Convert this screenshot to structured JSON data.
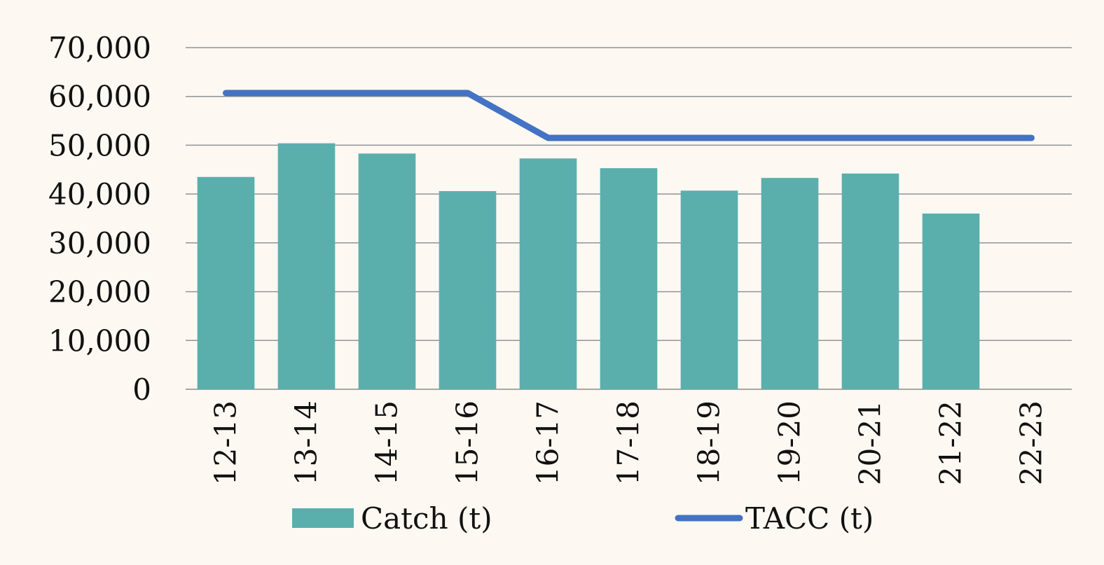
{
  "chart_data": {
    "type": "bar",
    "categories": [
      "12-13",
      "13-14",
      "14-15",
      "15-16",
      "16-17",
      "17-18",
      "18-19",
      "19-20",
      "20-21",
      "21-22",
      "22-23"
    ],
    "series": [
      {
        "name": "Catch (t)",
        "type": "bar",
        "color": "#5aafad",
        "values": [
          43500,
          50400,
          48300,
          40600,
          47300,
          45300,
          40700,
          43300,
          44200,
          36000,
          null
        ]
      },
      {
        "name": "TACC (t)",
        "type": "line",
        "color": "#4472c4",
        "values": [
          60700,
          60700,
          60700,
          60700,
          51500,
          51500,
          51500,
          51500,
          51500,
          51500,
          51500
        ]
      }
    ],
    "title": "",
    "xlabel": "",
    "ylabel": "",
    "ylim": [
      0,
      70000
    ],
    "yticks": [
      0,
      10000,
      20000,
      30000,
      40000,
      50000,
      60000,
      70000
    ],
    "ytick_labels": [
      "0",
      "10,000",
      "20,000",
      "30,000",
      "40,000",
      "50,000",
      "60,000",
      "70,000"
    ],
    "grid": true,
    "legend_position": "bottom"
  }
}
